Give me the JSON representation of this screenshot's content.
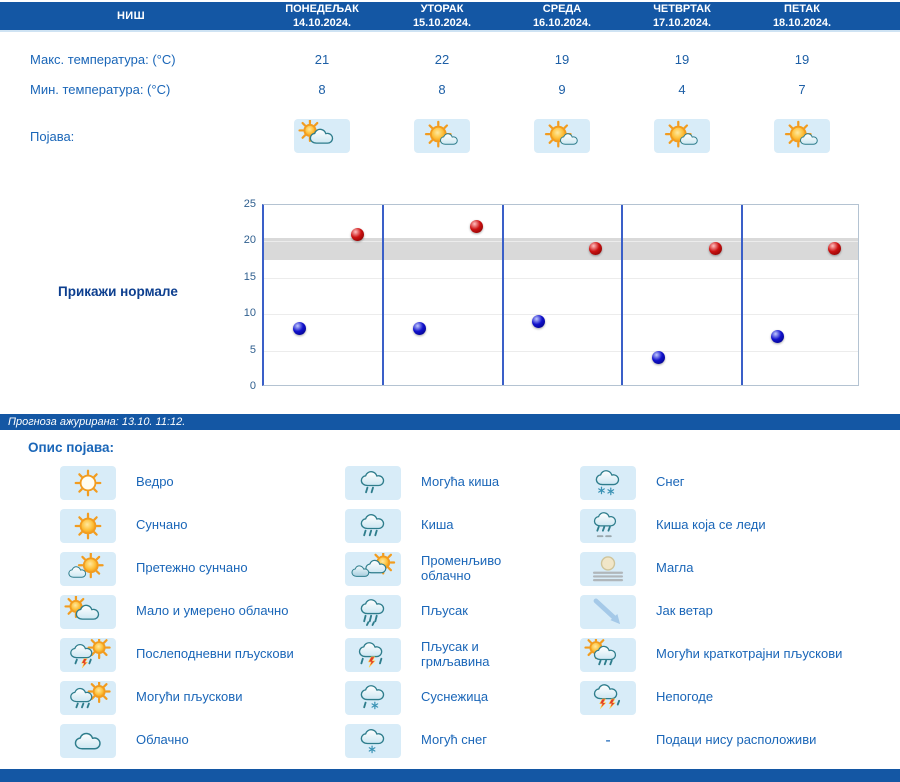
{
  "colors": {
    "header_bg": "#1457a4",
    "accent_text": "#1a66b8",
    "value_text": "#1d5fa6",
    "icon_bg": "#d8ecf8",
    "band": "#d9d9d9",
    "separator": "#3a5fc8",
    "dot_max": "#cc1111",
    "dot_min": "#1111cc"
  },
  "header": {
    "location": "НИШ",
    "days": [
      {
        "name": "ПОНЕДЕЉАК",
        "date": "14.10.2024."
      },
      {
        "name": "УТОРАК",
        "date": "15.10.2024."
      },
      {
        "name": "СРЕДА",
        "date": "16.10.2024."
      },
      {
        "name": "ЧЕТВРТАК",
        "date": "17.10.2024."
      },
      {
        "name": "ПЕТАК",
        "date": "18.10.2024."
      }
    ]
  },
  "table": {
    "max_label": "Макс. температура: (°C)",
    "max_values": [
      "21",
      "22",
      "19",
      "19",
      "19"
    ],
    "min_label": "Мин. температура: (°C)",
    "min_values": [
      "8",
      "8",
      "9",
      "4",
      "7"
    ],
    "phenomena_label": "Појава:",
    "phenomena_icons": [
      "partly-cloudy",
      "sun-cloud",
      "sun-cloud",
      "sun-cloud",
      "sun-cloud"
    ]
  },
  "chart": {
    "normals_button": "Прикажи нормале"
  },
  "chart_data": {
    "type": "scatter",
    "title": "",
    "categories": [
      "14.10.2024.",
      "15.10.2024.",
      "16.10.2024.",
      "17.10.2024.",
      "18.10.2024."
    ],
    "series": [
      {
        "name": "Макс. температура (°C)",
        "color": "#cc1111",
        "values": [
          21,
          22,
          19,
          19,
          19
        ]
      },
      {
        "name": "Мин. температура (°C)",
        "color": "#1111cc",
        "values": [
          8,
          8,
          9,
          4,
          7
        ]
      }
    ],
    "ylim": [
      0,
      25
    ],
    "yticks": [
      0,
      5,
      10,
      15,
      20,
      25
    ],
    "normals_band": {
      "from": 17.5,
      "to": 20.5
    },
    "grid": true,
    "legend_position": "none"
  },
  "updated": {
    "text": "Прогноза ажурирана:  13.10. 11:12."
  },
  "legend": {
    "title": "Опис појава:",
    "columns": [
      [
        {
          "icon": "sun-outline",
          "label": "Ведро"
        },
        {
          "icon": "sun",
          "label": "Сунчано"
        },
        {
          "icon": "mostly-sunny",
          "label": "Претежно сунчано"
        },
        {
          "icon": "partly-cloudy",
          "label": "Мало и умерено облачно"
        },
        {
          "icon": "afternoon-showers",
          "label": "Послеподневни пљускови"
        },
        {
          "icon": "cloud-sun-rain",
          "label": "Могући пљускови"
        },
        {
          "icon": "cloud",
          "label": "Облачно"
        }
      ],
      [
        {
          "icon": "cloud-rain-possible",
          "label": "Могућа киша"
        },
        {
          "icon": "cloud-rain",
          "label": "Киша"
        },
        {
          "icon": "clouds-sun",
          "label": "Променљиво облачно"
        },
        {
          "icon": "cloud-shower",
          "label": "Пљусак"
        },
        {
          "icon": "cloud-rain-lightning",
          "label": "Пљусак и грмљавина"
        },
        {
          "icon": "cloud-sleet",
          "label": "Суснежица"
        },
        {
          "icon": "cloud-snow-possible",
          "label": "Могућ снег"
        }
      ],
      [
        {
          "icon": "cloud-snow",
          "label": "Снег"
        },
        {
          "icon": "cloud-freezing-rain",
          "label": "Киша која се леди"
        },
        {
          "icon": "fog",
          "label": "Магла"
        },
        {
          "icon": "wind",
          "label": "Јак ветар"
        },
        {
          "icon": "cloud-sun-rain-brief",
          "label": "Могући краткотрајни пљускови"
        },
        {
          "icon": "storm",
          "label": "Непогоде"
        },
        {
          "icon": "dash",
          "label": "Подаци нису расположиви"
        }
      ]
    ]
  }
}
